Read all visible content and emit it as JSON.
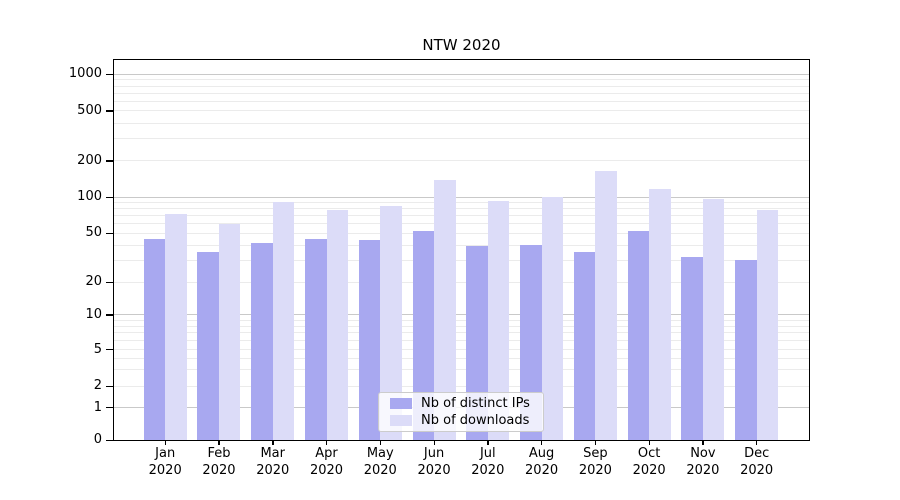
{
  "chart_data": {
    "type": "bar",
    "title": "NTW 2020",
    "categories": [
      "Jan 2020",
      "Feb 2020",
      "Mar 2020",
      "Apr 2020",
      "May 2020",
      "Jun 2020",
      "Jul 2020",
      "Aug 2020",
      "Sep 2020",
      "Oct 2020",
      "Nov 2020",
      "Dec 2020"
    ],
    "x_tick_line1": [
      "Jan",
      "Feb",
      "Mar",
      "Apr",
      "May",
      "Jun",
      "Jul",
      "Aug",
      "Sep",
      "Oct",
      "Nov",
      "Dec"
    ],
    "x_tick_line2": "2020",
    "series": [
      {
        "name": "Nb of distinct IPs",
        "color": "#a8a8f0",
        "values": [
          45,
          35,
          42,
          45,
          44,
          52,
          39,
          40,
          35,
          52,
          32,
          30
        ]
      },
      {
        "name": "Nb of downloads",
        "color": "#dcdcf8",
        "values": [
          72,
          60,
          92,
          78,
          84,
          140,
          93,
          100,
          165,
          118,
          96,
          78
        ]
      }
    ],
    "xlabel": "",
    "ylabel": "",
    "yscale": "symlog-like (log above 1, linear 0-1)",
    "y_ticks": [
      0,
      1,
      2,
      5,
      10,
      20,
      50,
      100,
      200,
      500,
      1000
    ],
    "y_tick_labels": [
      "0",
      "1",
      "2",
      "5",
      "10",
      "20",
      "50",
      "100",
      "200",
      "500",
      "1000"
    ],
    "ylim": [
      0,
      1242
    ],
    "grid": "horizontal major and minor gridlines",
    "legend_position": "lower center"
  },
  "colors": {
    "bar_ips": "#a8a8f0",
    "bar_downloads": "#dcdcf8",
    "grid_major": "#c9c9c9",
    "grid_minor": "#ebebeb",
    "spine": "#000000",
    "legend_border": "#cccccc",
    "background": "#ffffff"
  }
}
